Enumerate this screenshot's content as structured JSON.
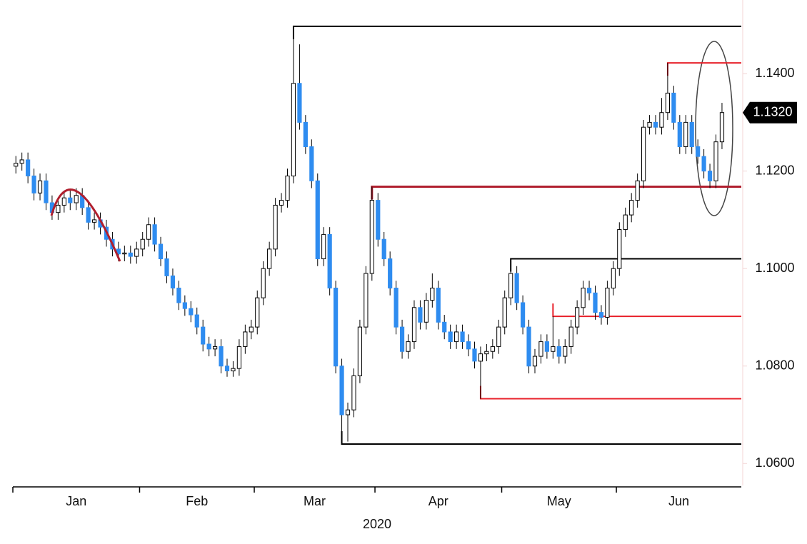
{
  "chart_data": {
    "type": "candlestick",
    "x_label": "2020",
    "xlim": [
      -0.5,
      120.2
    ],
    "xticks": [
      {
        "value": 0,
        "label": "Jan"
      },
      {
        "value": 21,
        "label": "Feb"
      },
      {
        "value": 40,
        "label": "Mar"
      },
      {
        "value": 60,
        "label": "Apr"
      },
      {
        "value": 81,
        "label": "May"
      },
      {
        "value": 100,
        "label": "Jun"
      }
    ],
    "ylim": [
      1.0555,
      1.1551
    ],
    "yticks": [
      {
        "value": 1.06,
        "label": "1.0600"
      },
      {
        "value": 1.08,
        "label": "1.0800"
      },
      {
        "value": 1.1,
        "label": "1.1000"
      },
      {
        "value": 1.12,
        "label": "1.1200"
      },
      {
        "value": 1.14,
        "label": "1.1400"
      }
    ],
    "up_color": "#ffffff",
    "down_color": "#2e8cf0",
    "last_price": {
      "value": 1.132,
      "label": "1.1320"
    },
    "levels": [
      {
        "value": 1.1497,
        "start": 46,
        "color": "#000000"
      },
      {
        "value": 1.1422,
        "start": 108,
        "color": "#e8202a"
      },
      {
        "value": 1.1168,
        "start": 59,
        "color": "#b01f2e"
      },
      {
        "value": 1.102,
        "start": 82,
        "color": "#000000"
      },
      {
        "value": 1.0902,
        "start": 89,
        "color": "#e8202a"
      },
      {
        "value": 1.0733,
        "start": 77,
        "color": "#e8202a"
      },
      {
        "value": 1.064,
        "start": 54,
        "color": "#000000"
      }
    ],
    "ohlc": [
      [
        1.121,
        1.1231,
        1.1195,
        1.1216
      ],
      [
        1.1216,
        1.1238,
        1.1201,
        1.1223
      ],
      [
        1.1223,
        1.1238,
        1.1175,
        1.119
      ],
      [
        1.119,
        1.1205,
        1.114,
        1.1155
      ],
      [
        1.1155,
        1.1195,
        1.114,
        1.118
      ],
      [
        1.118,
        1.1195,
        1.112,
        1.1135
      ],
      [
        1.1135,
        1.115,
        1.11,
        1.1115
      ],
      [
        1.1115,
        1.1145,
        1.11,
        1.113
      ],
      [
        1.113,
        1.116,
        1.1115,
        1.1145
      ],
      [
        1.1145,
        1.116,
        1.112,
        1.1135
      ],
      [
        1.1135,
        1.1165,
        1.112,
        1.115
      ],
      [
        1.115,
        1.1165,
        1.111,
        1.1125
      ],
      [
        1.1125,
        1.114,
        1.108,
        1.1095
      ],
      [
        1.1095,
        1.1115,
        1.108,
        1.11
      ],
      [
        1.11,
        1.1115,
        1.107,
        1.1085
      ],
      [
        1.1085,
        1.11,
        1.1045,
        1.106
      ],
      [
        1.106,
        1.1075,
        1.1025,
        1.104
      ],
      [
        1.104,
        1.1055,
        1.1015,
        1.103
      ],
      [
        1.103,
        1.1047,
        1.1015,
        1.1032
      ],
      [
        1.1032,
        1.1047,
        1.101,
        1.1025
      ],
      [
        1.1025,
        1.1055,
        1.101,
        1.104
      ],
      [
        1.104,
        1.1075,
        1.1025,
        1.106
      ],
      [
        1.106,
        1.1105,
        1.1045,
        1.109
      ],
      [
        1.109,
        1.1105,
        1.1035,
        1.105
      ],
      [
        1.105,
        1.1065,
        1.1005,
        1.102
      ],
      [
        1.102,
        1.1035,
        1.097,
        1.0985
      ],
      [
        1.0985,
        1.1,
        1.0945,
        1.096
      ],
      [
        1.096,
        1.0975,
        1.0915,
        1.093
      ],
      [
        1.093,
        1.0945,
        1.0903,
        1.0918
      ],
      [
        1.0918,
        1.0933,
        1.089,
        1.0905
      ],
      [
        1.0905,
        1.092,
        1.0865,
        1.088
      ],
      [
        1.088,
        1.0895,
        1.083,
        1.0845
      ],
      [
        1.0845,
        1.086,
        1.082,
        1.0835
      ],
      [
        1.0835,
        1.0855,
        1.082,
        1.084
      ],
      [
        1.084,
        1.0855,
        1.0785,
        1.08
      ],
      [
        1.08,
        1.0815,
        1.0778,
        1.079
      ],
      [
        1.079,
        1.081,
        1.0778,
        1.0795
      ],
      [
        1.0795,
        1.0855,
        1.078,
        1.084
      ],
      [
        1.084,
        1.0885,
        1.0825,
        1.087
      ],
      [
        1.087,
        1.0895,
        1.0855,
        1.088
      ],
      [
        1.088,
        1.0955,
        1.0865,
        1.094
      ],
      [
        1.094,
        1.1015,
        1.0925,
        1.1
      ],
      [
        1.1,
        1.1055,
        1.0985,
        1.104
      ],
      [
        1.104,
        1.1145,
        1.1025,
        1.113
      ],
      [
        1.113,
        1.1155,
        1.1115,
        1.114
      ],
      [
        1.114,
        1.1205,
        1.1125,
        1.119
      ],
      [
        1.119,
        1.1497,
        1.1175,
        1.138
      ],
      [
        1.138,
        1.146,
        1.1285,
        1.13
      ],
      [
        1.13,
        1.1315,
        1.1235,
        1.125
      ],
      [
        1.125,
        1.1265,
        1.1165,
        1.118
      ],
      [
        1.118,
        1.1195,
        1.1005,
        1.102
      ],
      [
        1.102,
        1.1085,
        1.1005,
        1.107
      ],
      [
        1.107,
        1.1085,
        1.0945,
        1.096
      ],
      [
        1.096,
        1.0975,
        1.0785,
        1.08
      ],
      [
        1.08,
        1.0815,
        1.064,
        1.07
      ],
      [
        1.07,
        1.0725,
        1.0645,
        1.071
      ],
      [
        1.071,
        1.0795,
        1.0695,
        1.078
      ],
      [
        1.078,
        1.0895,
        1.0765,
        1.088
      ],
      [
        1.088,
        1.1005,
        1.0865,
        1.099
      ],
      [
        1.099,
        1.1168,
        1.0975,
        1.114
      ],
      [
        1.114,
        1.1155,
        1.1045,
        1.106
      ],
      [
        1.106,
        1.1075,
        1.1005,
        1.102
      ],
      [
        1.102,
        1.1035,
        1.0945,
        1.096
      ],
      [
        1.096,
        1.0975,
        1.0865,
        1.088
      ],
      [
        1.088,
        1.0895,
        1.0815,
        1.083
      ],
      [
        1.083,
        1.0865,
        1.0815,
        1.085
      ],
      [
        1.085,
        1.0935,
        1.0835,
        1.092
      ],
      [
        1.092,
        1.0935,
        1.0875,
        1.089
      ],
      [
        1.089,
        1.095,
        1.0875,
        1.0935
      ],
      [
        1.0935,
        1.099,
        1.092,
        1.096
      ],
      [
        1.096,
        1.0975,
        1.0875,
        1.089
      ],
      [
        1.089,
        1.0905,
        1.0855,
        1.087
      ],
      [
        1.087,
        1.0885,
        1.0835,
        1.085
      ],
      [
        1.085,
        1.0885,
        1.0835,
        1.087
      ],
      [
        1.087,
        1.0885,
        1.0835,
        1.085
      ],
      [
        1.085,
        1.0865,
        1.082,
        1.0835
      ],
      [
        1.0835,
        1.085,
        1.0795,
        1.081
      ],
      [
        1.081,
        1.084,
        1.0733,
        1.0825
      ],
      [
        1.0825,
        1.0845,
        1.081,
        1.083
      ],
      [
        1.083,
        1.0855,
        1.0815,
        1.084
      ],
      [
        1.084,
        1.0895,
        1.0825,
        1.088
      ],
      [
        1.088,
        1.0955,
        1.0865,
        1.094
      ],
      [
        1.094,
        1.102,
        1.0925,
        1.099
      ],
      [
        1.099,
        1.1005,
        1.0915,
        1.093
      ],
      [
        1.093,
        1.0945,
        1.0865,
        1.088
      ],
      [
        1.088,
        1.0895,
        1.0785,
        1.08
      ],
      [
        1.08,
        1.0835,
        1.0785,
        1.082
      ],
      [
        1.082,
        1.0865,
        1.0805,
        1.085
      ],
      [
        1.085,
        1.0865,
        1.0815,
        1.083
      ],
      [
        1.083,
        1.0902,
        1.0815,
        1.084
      ],
      [
        1.084,
        1.0855,
        1.0805,
        1.082
      ],
      [
        1.082,
        1.0855,
        1.0805,
        1.084
      ],
      [
        1.084,
        1.0895,
        1.0825,
        1.088
      ],
      [
        1.088,
        1.0935,
        1.0865,
        1.092
      ],
      [
        1.092,
        1.0975,
        1.0905,
        1.096
      ],
      [
        1.096,
        1.0975,
        1.0935,
        1.095
      ],
      [
        1.095,
        1.0965,
        1.0895,
        1.091
      ],
      [
        1.091,
        1.0925,
        1.0885,
        1.09
      ],
      [
        1.09,
        1.0975,
        1.0885,
        1.096
      ],
      [
        1.096,
        1.1015,
        1.0945,
        1.1
      ],
      [
        1.1,
        1.1095,
        1.0985,
        1.108
      ],
      [
        1.108,
        1.1125,
        1.1065,
        1.111
      ],
      [
        1.111,
        1.1155,
        1.1095,
        1.114
      ],
      [
        1.114,
        1.1195,
        1.1125,
        1.118
      ],
      [
        1.118,
        1.1305,
        1.1165,
        1.129
      ],
      [
        1.129,
        1.1315,
        1.1275,
        1.13
      ],
      [
        1.13,
        1.1315,
        1.1275,
        1.129
      ],
      [
        1.129,
        1.135,
        1.1275,
        1.132
      ],
      [
        1.132,
        1.1422,
        1.1305,
        1.136
      ],
      [
        1.136,
        1.1375,
        1.1285,
        1.13
      ],
      [
        1.13,
        1.1315,
        1.1235,
        1.125
      ],
      [
        1.125,
        1.1315,
        1.1235,
        1.13
      ],
      [
        1.13,
        1.1315,
        1.1235,
        1.125
      ],
      [
        1.125,
        1.1265,
        1.1215,
        1.123
      ],
      [
        1.123,
        1.1245,
        1.1185,
        1.12
      ],
      [
        1.12,
        1.1215,
        1.1165,
        1.118
      ],
      [
        1.118,
        1.1275,
        1.1165,
        1.126
      ],
      [
        1.126,
        1.134,
        1.1245,
        1.132
      ]
    ]
  }
}
